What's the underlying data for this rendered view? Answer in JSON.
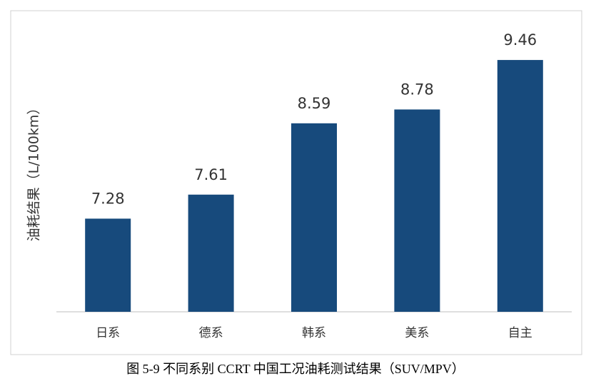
{
  "chart_data": {
    "type": "bar",
    "y_label": "油耗结果（L/100km）",
    "categories": [
      "日系",
      "德系",
      "韩系",
      "美系",
      "自主"
    ],
    "values": [
      7.28,
      7.61,
      8.59,
      8.78,
      9.46
    ],
    "color": "#174a7c",
    "ylim": [
      6,
      10
    ]
  },
  "caption": "图 5-9  不同系别 CCRT 中国工况油耗测试结果（SUV/MPV）"
}
